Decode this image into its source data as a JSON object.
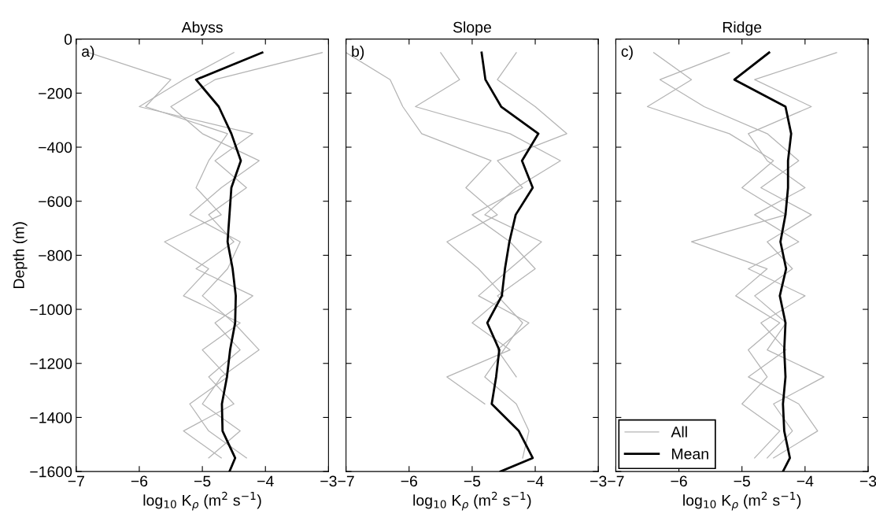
{
  "chart_data": [
    {
      "type": "line",
      "title": "Abyss",
      "xlabel": "log$_{10}$ K$_{ρ}$ (m$^{2}$ s$^{−1}$)",
      "ylabel": "Depth (m)",
      "annotations": [
        "a)"
      ],
      "xlim": [
        -7,
        -3
      ],
      "xticks": [
        {
          "value": -7,
          "label": "−7"
        },
        {
          "value": -6,
          "label": "−6"
        },
        {
          "value": -5,
          "label": "−5"
        },
        {
          "value": -4,
          "label": "−4"
        },
        {
          "value": -3,
          "label": "−3"
        }
      ],
      "ylim": [
        -1600,
        0
      ],
      "yticks": [
        {
          "value": -1600,
          "label": "−1600"
        },
        {
          "value": -1400,
          "label": "−1400"
        },
        {
          "value": -1200,
          "label": "−1200"
        },
        {
          "value": -1000,
          "label": "−1000"
        },
        {
          "value": -800,
          "label": "−800"
        },
        {
          "value": -600,
          "label": "−600"
        },
        {
          "value": -400,
          "label": "−400"
        },
        {
          "value": -200,
          "label": "−200"
        },
        0
      ],
      "grid": false,
      "legend": false,
      "series": [
        {
          "color": "#b4b4b4",
          "x": [
            -6.8,
            -5.5,
            -5.9,
            -4.6,
            -4.9,
            -5.1,
            -4.7,
            -5.6,
            -4.9,
            -5.3,
            -4.4,
            -5.0,
            -4.6,
            -5.2,
            -4.9,
            -4.3
          ],
          "values": [
            -50,
            -150,
            -250,
            -350,
            -450,
            -550,
            -650,
            -750,
            -850,
            -950,
            -1050,
            -1150,
            -1250,
            -1350,
            -1450,
            -1550
          ]
        },
        {
          "color": "#b4b4b4",
          "x": [
            -4.5,
            -5.3,
            -6.0,
            -4.2,
            -4.8,
            -4.3,
            -4.9,
            -4.5,
            -5.1,
            -4.2,
            -4.8,
            -4.4,
            -4.9,
            -4.5,
            -5.3,
            -4.7
          ],
          "values": [
            -50,
            -150,
            -250,
            -350,
            -450,
            -550,
            -650,
            -750,
            -850,
            -950,
            -1050,
            -1150,
            -1250,
            -1350,
            -1450,
            -1550
          ]
        },
        {
          "color": "#b4b4b4",
          "x": [
            -3.1,
            -4.8,
            -5.5,
            -5.0,
            -4.1,
            -4.7,
            -5.2,
            -4.4,
            -4.6,
            -5.0,
            -4.5,
            -4.1,
            -4.7,
            -5.0,
            -4.4,
            -4.9
          ],
          "values": [
            -50,
            -150,
            -250,
            -350,
            -450,
            -550,
            -650,
            -750,
            -850,
            -950,
            -1050,
            -1150,
            -1250,
            -1350,
            -1450,
            -1550
          ]
        },
        {
          "color": "#000000",
          "x": [
            -4.05,
            -5.1,
            -4.74,
            -4.54,
            -4.39,
            -4.54,
            -4.57,
            -4.6,
            -4.52,
            -4.47,
            -4.48,
            -4.56,
            -4.61,
            -4.69,
            -4.68,
            -4.48,
            -4.57
          ],
          "values": [
            -50,
            -150,
            -250,
            -350,
            -450,
            -550,
            -650,
            -750,
            -850,
            -950,
            -1050,
            -1150,
            -1250,
            -1350,
            -1450,
            -1550,
            -1600
          ]
        }
      ]
    },
    {
      "type": "line",
      "title": "Slope",
      "xlabel": "log$_{10}$ K$_{ρ}$ (m$^{2}$ s$^{−1}$)",
      "annotations": [
        "b)"
      ],
      "tick_labels": "x",
      "xlim": [
        -7,
        -3
      ],
      "xticks": [
        {
          "value": -7,
          "label": "−7"
        },
        {
          "value": -6,
          "label": "−6"
        },
        {
          "value": -5,
          "label": "−5"
        },
        {
          "value": -4,
          "label": "−4"
        },
        {
          "value": -3,
          "label": "−3"
        }
      ],
      "ylim": [
        -1600,
        0
      ],
      "yticks": [
        -1600,
        -1400,
        -1200,
        -1000,
        -800,
        -600,
        -400,
        -200,
        0
      ],
      "grid": false,
      "legend": false,
      "series": [
        {
          "color": "#b4b4b4",
          "x": [
            -7.0,
            -6.3,
            -6.1,
            -5.8,
            -4.7,
            -5.1,
            -4.6,
            -5.4,
            -4.9,
            -4.5,
            -5.0,
            -4.4,
            -5.4,
            -4.8
          ],
          "values": [
            -50,
            -150,
            -250,
            -350,
            -450,
            -550,
            -650,
            -750,
            -850,
            -950,
            -1050,
            -1150,
            -1250,
            -1350
          ]
        },
        {
          "color": "#b4b4b4",
          "x": [
            -5.5,
            -5.2,
            -5.9,
            -4.4,
            -3.6,
            -4.3,
            -4.8,
            -3.9,
            -4.4,
            -4.9,
            -4.1,
            -4.6,
            -4.3
          ],
          "values": [
            -50,
            -150,
            -250,
            -350,
            -450,
            -550,
            -650,
            -750,
            -850,
            -950,
            -1050,
            -1150,
            -1250
          ]
        },
        {
          "color": "#b4b4b4",
          "x": [
            -4.3,
            -4.6,
            -4.0,
            -3.5,
            -4.6,
            -4.2,
            -5.0,
            -4.4,
            -4.0,
            -4.6,
            -4.2,
            -4.5,
            -4.8,
            -4.3,
            -4.1,
            -4.2
          ],
          "values": [
            -50,
            -150,
            -250,
            -350,
            -450,
            -550,
            -650,
            -750,
            -850,
            -950,
            -1050,
            -1150,
            -1250,
            -1350,
            -1450,
            -1550
          ]
        },
        {
          "color": "#000000",
          "x": [
            -4.85,
            -4.79,
            -4.54,
            -3.95,
            -4.21,
            -4.04,
            -4.31,
            -4.41,
            -4.48,
            -4.53,
            -4.76,
            -4.57,
            -4.62,
            -4.69,
            -4.26,
            -4.04,
            -4.55
          ],
          "values": [
            -50,
            -150,
            -250,
            -350,
            -450,
            -550,
            -650,
            -750,
            -850,
            -950,
            -1050,
            -1150,
            -1250,
            -1350,
            -1450,
            -1550,
            -1600
          ]
        }
      ]
    },
    {
      "type": "line",
      "title": "Ridge",
      "xlabel": "log$_{10}$ K$_{ρ}$ (m$^{2}$ s$^{−1}$)",
      "annotations": [
        "c)"
      ],
      "tick_labels": "x",
      "xlim": [
        -7,
        -3
      ],
      "xticks": [
        {
          "value": -7,
          "label": "−7"
        },
        {
          "value": -6,
          "label": "−6"
        },
        {
          "value": -5,
          "label": "−5"
        },
        {
          "value": -4,
          "label": "−4"
        },
        {
          "value": -3,
          "label": "−3"
        }
      ],
      "ylim": [
        -1600,
        0
      ],
      "yticks": [
        -1600,
        -1400,
        -1200,
        -1000,
        -800,
        -600,
        -400,
        -200,
        0
      ],
      "grid": false,
      "legend": "bottom left",
      "series": [
        {
          "name": "All",
          "color": "#b4b4b4",
          "x": [
            -6.4,
            -5.8,
            -6.5,
            -5.2,
            -4.5,
            -5.0,
            -4.3,
            -5.8,
            -4.6,
            -5.1,
            -4.4,
            -4.9,
            -4.6,
            -5.0,
            -4.4,
            -4.8
          ],
          "values": [
            -50,
            -150,
            -250,
            -350,
            -450,
            -550,
            -650,
            -750,
            -850,
            -950,
            -1050,
            -1150,
            -1250,
            -1350,
            -1450,
            -1550
          ]
        },
        {
          "color": "#b4b4b4",
          "x": [
            -5.2,
            -6.3,
            -5.6,
            -4.6,
            -4.1,
            -4.7,
            -3.9,
            -4.6,
            -4.2,
            -4.8,
            -4.3,
            -4.6,
            -3.7,
            -4.5,
            -4.2,
            -4.6
          ],
          "values": [
            -50,
            -150,
            -250,
            -350,
            -450,
            -550,
            -650,
            -750,
            -850,
            -950,
            -1050,
            -1150,
            -1250,
            -1350,
            -1450,
            -1550
          ]
        },
        {
          "color": "#b4b4b4",
          "x": [
            -3.5,
            -4.8,
            -3.9,
            -4.9,
            -4.6,
            -4.0,
            -4.8,
            -4.1,
            -4.9,
            -4.0,
            -4.7,
            -4.3,
            -4.9,
            -4.1,
            -3.8,
            -4.5
          ],
          "values": [
            -50,
            -150,
            -250,
            -350,
            -450,
            -550,
            -650,
            -750,
            -850,
            -950,
            -1050,
            -1150,
            -1250,
            -1350,
            -1450,
            -1550
          ]
        },
        {
          "name": "Mean",
          "color": "#000000",
          "x": [
            -4.57,
            -5.12,
            -4.31,
            -4.22,
            -4.27,
            -4.27,
            -4.31,
            -4.39,
            -4.3,
            -4.4,
            -4.31,
            -4.33,
            -4.31,
            -4.35,
            -4.33,
            -4.24,
            -4.35
          ],
          "values": [
            -50,
            -150,
            -250,
            -350,
            -450,
            -550,
            -650,
            -750,
            -850,
            -950,
            -1050,
            -1150,
            -1250,
            -1350,
            -1450,
            -1550,
            -1600
          ]
        }
      ]
    }
  ]
}
